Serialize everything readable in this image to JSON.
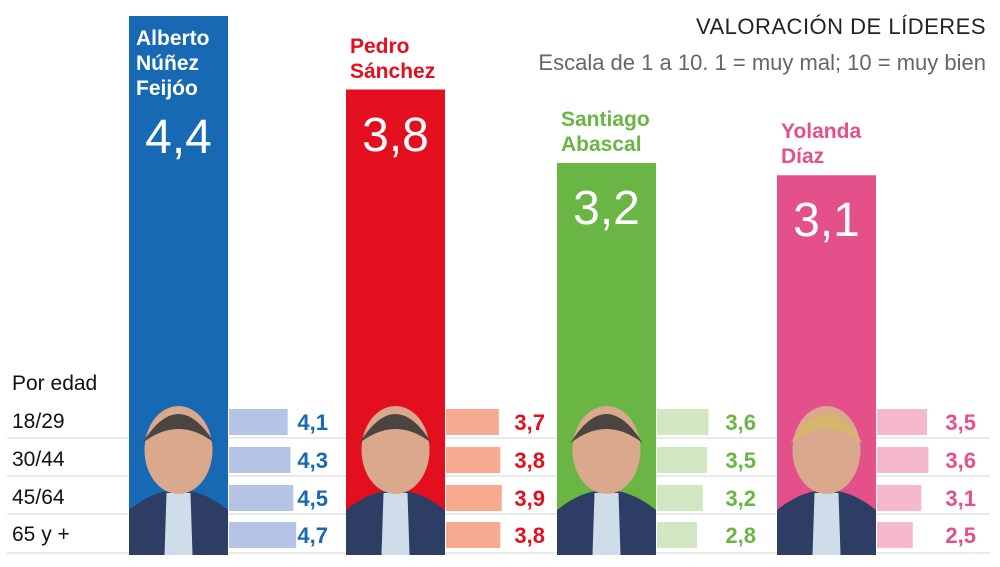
{
  "chart_data": {
    "type": "bar",
    "title": "VALORACIÓN DE LÍDERES",
    "subtitle": "Escala de 1 a 10. 1 = muy mal; 10 = muy bien",
    "categories": [
      "Alberto Núñez Feijóo",
      "Pedro Sánchez",
      "Santiago Abascal",
      "Yolanda Díaz"
    ],
    "name_lines": [
      [
        "Alberto",
        "Núñez",
        "Feijóo"
      ],
      [
        "Pedro",
        "Sánchez"
      ],
      [
        "Santiago",
        "Abascal"
      ],
      [
        "Yolanda",
        "Díaz"
      ]
    ],
    "values": [
      4.4,
      3.8,
      3.2,
      3.1
    ],
    "value_labels": [
      "4,4",
      "3,8",
      "3,2",
      "3,1"
    ],
    "colors": [
      "#1769b3",
      "#e30f1f",
      "#6ab645",
      "#e4508a"
    ],
    "light_colors": [
      "#b5c3e6",
      "#f6ab91",
      "#d1e7c2",
      "#f6b9cb"
    ],
    "age_section_label": "Por edad",
    "age_groups": [
      "18/29",
      "30/44",
      "45/64",
      "65 y +"
    ],
    "age_series": [
      {
        "values": [
          4.1,
          4.3,
          4.5,
          4.7
        ],
        "labels": [
          "4,1",
          "4,3",
          "4,5",
          "4,7"
        ]
      },
      {
        "values": [
          3.7,
          3.8,
          3.9,
          3.8
        ],
        "labels": [
          "3,7",
          "3,8",
          "3,9",
          "3,8"
        ]
      },
      {
        "values": [
          3.6,
          3.5,
          3.2,
          2.8
        ],
        "labels": [
          "3,6",
          "3,5",
          "3,2",
          "2,8"
        ]
      },
      {
        "values": [
          3.5,
          3.6,
          3.1,
          2.5
        ],
        "labels": [
          "3,5",
          "3,6",
          "3,1",
          "2,5"
        ]
      }
    ],
    "ylim": [
      0,
      10
    ]
  }
}
